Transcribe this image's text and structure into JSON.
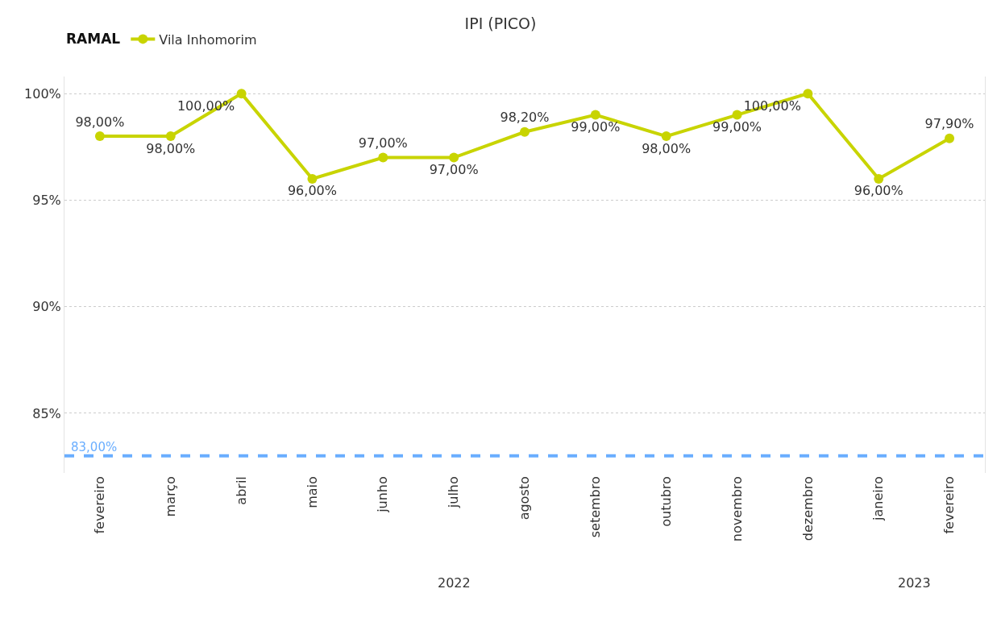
{
  "chart_data": {
    "type": "line",
    "title": "IPI (PICO)",
    "legend_title": "RAMAL",
    "legend": "top left",
    "categories": [
      "fevereiro",
      "março",
      "abril",
      "maio",
      "junho",
      "julho",
      "agosto",
      "setembro",
      "outubro",
      "novembro",
      "dezembro",
      "janeiro",
      "fevereiro"
    ],
    "series": [
      {
        "name": "Vila Inhomorim",
        "color": "#c8d400",
        "values": [
          98,
          98,
          100,
          96,
          97,
          97,
          98.2,
          99,
          98,
          99,
          100,
          96,
          97.9
        ],
        "value_labels": [
          "98,00%",
          "98,00%",
          "100,00%",
          "96,00%",
          "97,00%",
          "97,00%",
          "98,20%",
          "99,00%",
          "98,00%",
          "99,00%",
          "100,00%",
          "96,00%",
          "97,90%"
        ]
      }
    ],
    "ylim": [
      82.2,
      100.8
    ],
    "yticks": [
      {
        "value": 85,
        "label": "85%"
      },
      {
        "value": 90,
        "label": "90%"
      },
      {
        "value": 95,
        "label": "95%"
      },
      {
        "value": 100,
        "label": "100%"
      }
    ],
    "grid": "y",
    "marker": "circle",
    "line_style": "solid",
    "ref_lines": [
      {
        "axis": "y",
        "value": 83,
        "label": "83,00%",
        "color": "#6aaeff",
        "line_style": "dashed"
      }
    ],
    "annotations": [
      "2022",
      "2023"
    ]
  }
}
